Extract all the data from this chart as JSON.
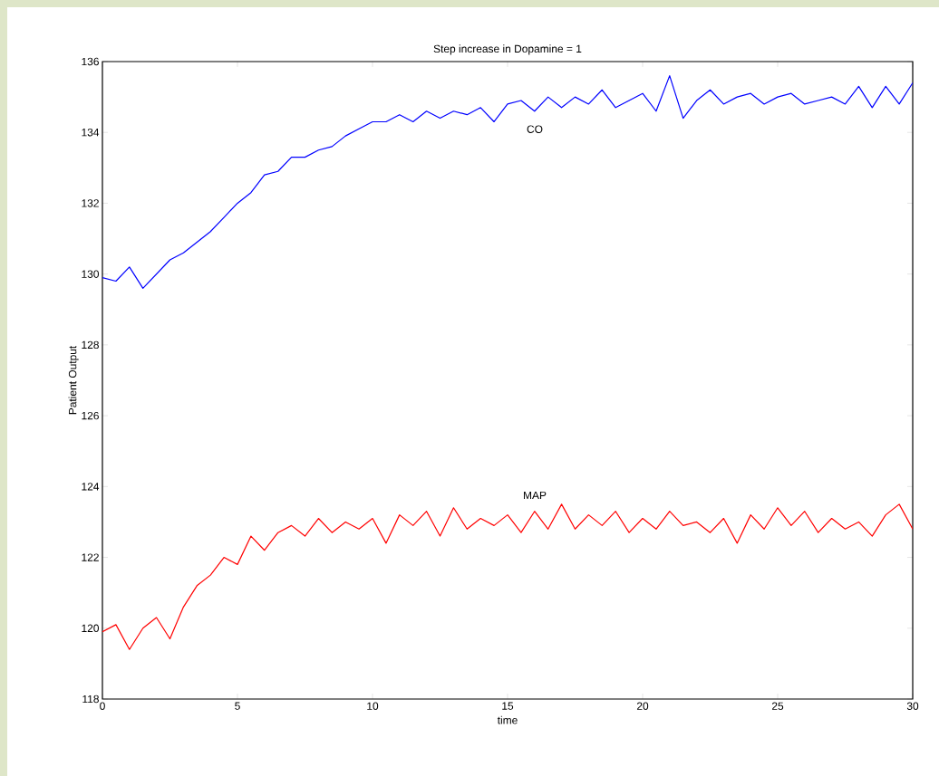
{
  "chart_data": {
    "type": "line",
    "title": "Step increase in Dopamine = 1",
    "xlabel": "time",
    "ylabel": "Patient Output",
    "x": [
      0,
      0.5,
      1,
      1.5,
      2,
      2.5,
      3,
      3.5,
      4,
      4.5,
      5,
      5.5,
      6,
      6.5,
      7,
      7.5,
      8,
      8.5,
      9,
      9.5,
      10,
      10.5,
      11,
      11.5,
      12,
      12.5,
      13,
      13.5,
      14,
      14.5,
      15,
      15.5,
      16,
      16.5,
      17,
      17.5,
      18,
      18.5,
      19,
      19.5,
      20,
      20.5,
      21,
      21.5,
      22,
      22.5,
      23,
      23.5,
      24,
      24.5,
      25,
      25.5,
      26,
      26.5,
      27,
      27.5,
      28,
      28.5,
      29,
      29.5,
      30
    ],
    "series": [
      {
        "name": "CO",
        "color": "#0000ff",
        "values": [
          129.9,
          129.8,
          130.2,
          129.6,
          130.0,
          130.4,
          130.6,
          130.9,
          131.2,
          131.6,
          132.0,
          132.3,
          132.8,
          132.9,
          133.3,
          133.3,
          133.5,
          133.6,
          133.9,
          134.1,
          134.3,
          134.3,
          134.5,
          134.3,
          134.6,
          134.4,
          134.6,
          134.5,
          134.7,
          134.3,
          134.8,
          134.9,
          134.6,
          135.0,
          134.7,
          135.0,
          134.8,
          135.2,
          134.7,
          134.9,
          135.1,
          134.6,
          135.6,
          134.4,
          134.9,
          135.2,
          134.8,
          135.0,
          135.1,
          134.8,
          135.0,
          135.1,
          134.8,
          134.9,
          135.0,
          134.8,
          135.3,
          134.7,
          135.3,
          134.8,
          135.4
        ]
      },
      {
        "name": "MAP",
        "color": "#ff0000",
        "values": [
          119.9,
          120.1,
          119.4,
          120.0,
          120.3,
          119.7,
          120.6,
          121.2,
          121.5,
          122.0,
          121.8,
          122.6,
          122.2,
          122.7,
          122.9,
          122.6,
          123.1,
          122.7,
          123.0,
          122.8,
          123.1,
          122.4,
          123.2,
          122.9,
          123.3,
          122.6,
          123.4,
          122.8,
          123.1,
          122.9,
          123.2,
          122.7,
          123.3,
          122.8,
          123.5,
          122.8,
          123.2,
          122.9,
          123.3,
          122.7,
          123.1,
          122.8,
          123.3,
          122.9,
          123.0,
          122.7,
          123.1,
          122.4,
          123.2,
          122.8,
          123.4,
          122.9,
          123.3,
          122.7,
          123.1,
          122.8,
          123.0,
          122.6,
          123.2,
          123.5,
          122.8
        ]
      }
    ],
    "xlim": [
      0,
      30
    ],
    "xticks": [
      0,
      5,
      10,
      15,
      20,
      25,
      30
    ],
    "ylim": [
      118,
      136
    ],
    "yticks": [
      118,
      120,
      122,
      124,
      126,
      128,
      130,
      132,
      134,
      136
    ],
    "grid": false
  }
}
